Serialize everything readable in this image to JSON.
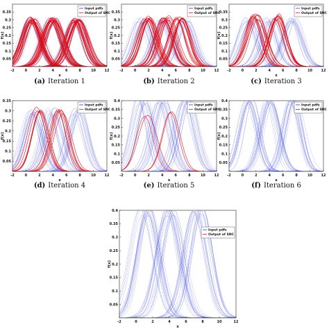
{
  "chart_data": [
    {
      "type": "line",
      "caption_label": "(a)",
      "caption_text": "Iteration 1",
      "xlabel": "x",
      "ylabel": "f(x)",
      "xlim": [
        -2,
        12
      ],
      "ylim": [
        0,
        0.4
      ],
      "x_ticks": [
        -2,
        0,
        2,
        4,
        6,
        8,
        10,
        12
      ],
      "y_ticks": [
        0.05,
        0.1,
        0.15,
        0.2,
        0.25,
        0.3,
        0.35
      ],
      "legend": {
        "placement": "top-right",
        "entries": [
          "Input pdfs",
          "Output of SNC"
        ]
      },
      "series": [
        {
          "name": "Input pdfs",
          "color": "#2a36d8",
          "means": [
            1,
            4,
            7.5
          ],
          "std": 1.3,
          "peak": 0.3,
          "samples": 14
        },
        {
          "name": "Output of SNC",
          "color": "#d8101e",
          "means": [
            1,
            4,
            7.5
          ],
          "std": 1.3,
          "peak": 0.3,
          "samples": 18
        }
      ]
    },
    {
      "type": "line",
      "caption_label": "(b)",
      "caption_text": "Iteration 2",
      "xlabel": "x",
      "ylabel": "f(x)",
      "xlim": [
        -2,
        12
      ],
      "ylim": [
        0,
        0.4
      ],
      "x_ticks": [
        -2,
        0,
        2,
        4,
        6,
        8,
        10,
        12
      ],
      "y_ticks": [
        0.05,
        0.1,
        0.15,
        0.2,
        0.25,
        0.3,
        0.35
      ],
      "legend": {
        "placement": "top-right",
        "entries": [
          "Input pdfs",
          "Output of SNC"
        ]
      },
      "series": [
        {
          "name": "Input pdfs",
          "color": "#2a36d8",
          "means": [
            1,
            4,
            7.5
          ],
          "std": 1.3,
          "peak": 0.3,
          "samples": 14
        },
        {
          "name": "Output of SNC",
          "color": "#d8101e",
          "means": [
            1.8,
            4.5,
            6.5
          ],
          "std": 1.25,
          "peak": 0.31,
          "samples": 12
        }
      ]
    },
    {
      "type": "line",
      "caption_label": "(c)",
      "caption_text": "Iteration 3",
      "xlabel": "x",
      "ylabel": "f(x)",
      "xlim": [
        -2,
        12
      ],
      "ylim": [
        0,
        0.4
      ],
      "x_ticks": [
        -2,
        0,
        2,
        4,
        6,
        8,
        10,
        12
      ],
      "y_ticks": [
        0.05,
        0.1,
        0.15,
        0.2,
        0.25,
        0.3,
        0.35
      ],
      "legend": {
        "placement": "top-right",
        "entries": [
          "Input pdfs",
          "Output of SNC"
        ]
      },
      "series": [
        {
          "name": "Input pdfs",
          "color": "#2a36d8",
          "means": [
            1,
            4,
            7.5
          ],
          "std": 1.3,
          "peak": 0.3,
          "samples": 14
        },
        {
          "name": "Output of SNC",
          "color": "#d8101e",
          "means": [
            1.8,
            5
          ],
          "std": 1.25,
          "peak": 0.32,
          "samples": 10
        }
      ]
    },
    {
      "type": "line",
      "caption_label": "(d)",
      "caption_text": "Iteration 4",
      "xlabel": "x",
      "ylabel": "f(x)",
      "xlim": [
        -2,
        12
      ],
      "ylim": [
        0,
        0.35
      ],
      "x_ticks": [
        -2,
        0,
        2,
        4,
        6,
        8,
        10,
        12
      ],
      "y_ticks": [
        0.05,
        0.1,
        0.15,
        0.2,
        0.25,
        0.3,
        0.35
      ],
      "legend": {
        "placement": "top-right",
        "entries": [
          "Input pdfs",
          "Output of SNC"
        ]
      },
      "series": [
        {
          "name": "Input pdfs",
          "color": "#2a36d8",
          "means": [
            1,
            4,
            7.5
          ],
          "std": 1.3,
          "peak": 0.3,
          "samples": 14
        },
        {
          "name": "Output of SNC",
          "color": "#d8101e",
          "means": [
            1.8,
            5
          ],
          "std": 1.25,
          "peak": 0.3,
          "samples": 6
        }
      ]
    },
    {
      "type": "line",
      "caption_label": "(e)",
      "caption_text": "Iteration 5",
      "xlabel": "x",
      "ylabel": "f(x)",
      "xlim": [
        -2,
        12
      ],
      "ylim": [
        0,
        0.4
      ],
      "x_ticks": [
        -2,
        0,
        2,
        4,
        6,
        8,
        10,
        12
      ],
      "y_ticks": [
        0.05,
        0.1,
        0.15,
        0.2,
        0.25,
        0.3,
        0.35,
        0.4
      ],
      "legend": {
        "placement": "top-right",
        "entries": [
          "Input pdfs",
          "Output of SNC"
        ]
      },
      "series": [
        {
          "name": "Input pdfs",
          "color": "#2a36d8",
          "means": [
            1,
            4,
            7.5
          ],
          "std": 1.3,
          "peak": 0.4,
          "samples": 14
        },
        {
          "name": "Output of SNC",
          "color": "#d8101e",
          "means": [
            1.8,
            5
          ],
          "std": 1.25,
          "peak": 0.32,
          "samples": 2
        }
      ]
    },
    {
      "type": "line",
      "caption_label": "(f)",
      "caption_text": "Iteration 6",
      "xlabel": "x",
      "ylabel": "f(x)",
      "xlim": [
        -2,
        12
      ],
      "ylim": [
        0,
        0.4
      ],
      "x_ticks": [
        -2,
        0,
        2,
        4,
        6,
        8,
        10,
        12
      ],
      "y_ticks": [
        0.05,
        0.1,
        0.15,
        0.2,
        0.25,
        0.3,
        0.35,
        0.4
      ],
      "legend": {
        "placement": "top-right",
        "entries": [
          "Input pdfs",
          "Output of SNC"
        ]
      },
      "series": [
        {
          "name": "Input pdfs",
          "color": "#2a36d8",
          "means": [
            1,
            4,
            7.5
          ],
          "std": 1.3,
          "peak": 0.4,
          "samples": 14
        },
        {
          "name": "Output of SNC",
          "color": "#d8101e",
          "means": [],
          "std": 1.25,
          "peak": 0.3,
          "samples": 0
        }
      ]
    },
    {
      "type": "line",
      "caption_label": "",
      "caption_text": "",
      "xlabel": "x",
      "ylabel": "f(x)",
      "xlim": [
        -2,
        12
      ],
      "ylim": [
        0,
        0.4
      ],
      "x_ticks": [
        -2,
        0,
        2,
        4,
        6,
        8,
        10,
        12
      ],
      "y_ticks": [
        0.05,
        0.1,
        0.15,
        0.2,
        0.25,
        0.3,
        0.35,
        0.4
      ],
      "legend": {
        "placement": "top-right",
        "entries": [
          "Input pdfs",
          "Output of SNC"
        ]
      },
      "series": [
        {
          "name": "Input pdfs",
          "color": "#2a36d8",
          "means": [
            1,
            4,
            7.5
          ],
          "std": 1.3,
          "peak": 0.4,
          "samples": 16
        },
        {
          "name": "Output of SNC",
          "color": "#d8101e",
          "means": [],
          "std": 1.25,
          "peak": 0.3,
          "samples": 0
        }
      ]
    }
  ]
}
